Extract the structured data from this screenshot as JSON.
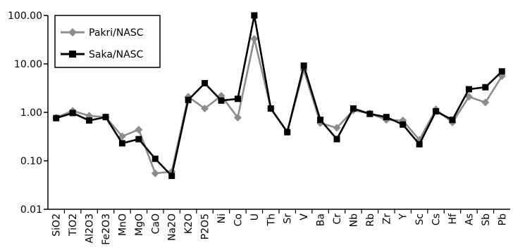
{
  "chart_data": {
    "type": "line",
    "y_scale": "log",
    "ylim": [
      0.01,
      100
    ],
    "y_ticks": [
      "0.01",
      "0.10",
      "1.00",
      "10.00",
      "100.00"
    ],
    "grid": false,
    "legend_placement": "top-left",
    "categories": [
      "SiO2",
      "TiO2",
      "Al2O3",
      "Fe2O3",
      "MnO",
      "MgO",
      "CaO",
      "Na2O",
      "K2O",
      "P2O5",
      "Ni",
      "Co",
      "U",
      "Th",
      "Sr",
      "V",
      "Ba",
      "Cr",
      "Nb",
      "Rb",
      "Zr",
      "Y",
      "Sc",
      "Cs",
      "Hf",
      "As",
      "Sb",
      "Pb"
    ],
    "series": [
      {
        "name": "Pakri/NASC",
        "color": "#8c8c8c",
        "marker": "diamond",
        "values": [
          0.78,
          1.08,
          0.85,
          0.8,
          0.32,
          0.44,
          0.055,
          0.06,
          2.1,
          1.2,
          2.2,
          0.78,
          33,
          1.2,
          0.4,
          7.5,
          0.6,
          0.48,
          1.1,
          0.95,
          0.7,
          0.68,
          0.27,
          1.15,
          0.62,
          2.1,
          1.6,
          5.6
        ]
      },
      {
        "name": "Saka/NASC",
        "color": "#000000",
        "marker": "square",
        "values": [
          0.76,
          0.97,
          0.68,
          0.8,
          0.23,
          0.28,
          0.11,
          0.049,
          1.8,
          4.0,
          1.75,
          1.9,
          100,
          1.2,
          0.39,
          9.2,
          0.7,
          0.28,
          1.2,
          0.93,
          0.8,
          0.56,
          0.22,
          1.05,
          0.7,
          3.0,
          3.3,
          7.0
        ]
      }
    ]
  }
}
